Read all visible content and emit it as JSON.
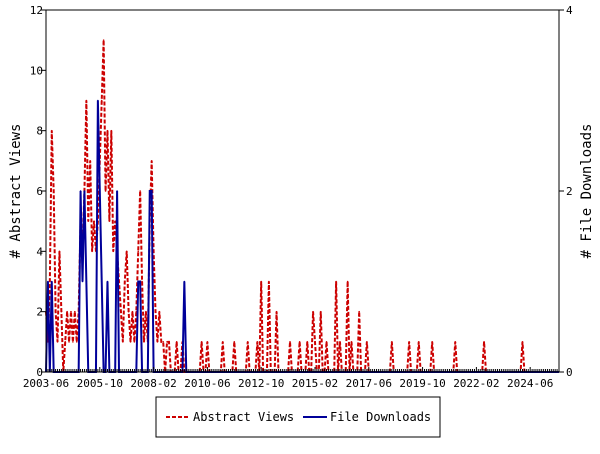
{
  "chart_data": {
    "type": "line",
    "title": "",
    "xlabel": "",
    "ylabel": "# Abstract Views",
    "y2label": "# File Downloads",
    "x_start": "2003-06",
    "x_end": "2025-09",
    "x_ticks": [
      "2003-06",
      "2005-10",
      "2008-02",
      "2010-06",
      "2012-10",
      "2015-02",
      "2017-06",
      "2019-10",
      "2022-02",
      "2024-06"
    ],
    "ylim": [
      0,
      12
    ],
    "y_ticks": [
      "0",
      "2",
      "4",
      "6",
      "8",
      "10",
      "12"
    ],
    "y2lim": [
      0,
      4
    ],
    "y2_ticks": [
      "0",
      "2",
      "4"
    ],
    "grid": false,
    "legend_position": "bottom",
    "series": [
      {
        "name": "Abstract Views",
        "axis": "left",
        "color": "#cc0000",
        "style": "dashed",
        "points": [
          [
            "2003-06",
            2
          ],
          [
            "2003-07",
            1
          ],
          [
            "2003-08",
            3
          ],
          [
            "2003-09",
            8
          ],
          [
            "2003-10",
            6
          ],
          [
            "2003-11",
            2
          ],
          [
            "2003-12",
            1
          ],
          [
            "2004-01",
            4
          ],
          [
            "2004-02",
            2
          ],
          [
            "2004-03",
            0
          ],
          [
            "2004-04",
            1
          ],
          [
            "2004-05",
            2
          ],
          [
            "2004-06",
            1
          ],
          [
            "2004-07",
            2
          ],
          [
            "2004-08",
            1
          ],
          [
            "2004-09",
            2
          ],
          [
            "2004-10",
            1
          ],
          [
            "2004-11",
            2
          ],
          [
            "2004-12",
            5
          ],
          [
            "2005-01",
            4
          ],
          [
            "2005-02",
            6
          ],
          [
            "2005-03",
            9
          ],
          [
            "2005-04",
            5
          ],
          [
            "2005-05",
            7
          ],
          [
            "2005-06",
            4
          ],
          [
            "2005-07",
            5
          ],
          [
            "2005-08",
            4
          ],
          [
            "2005-09",
            5
          ],
          [
            "2005-10",
            7
          ],
          [
            "2005-11",
            9
          ],
          [
            "2005-12",
            11
          ],
          [
            "2006-01",
            6
          ],
          [
            "2006-02",
            8
          ],
          [
            "2006-03",
            5
          ],
          [
            "2006-04",
            8
          ],
          [
            "2006-05",
            4
          ],
          [
            "2006-06",
            5
          ],
          [
            "2006-07",
            4
          ],
          [
            "2006-08",
            3
          ],
          [
            "2006-09",
            2
          ],
          [
            "2006-10",
            1
          ],
          [
            "2006-11",
            3
          ],
          [
            "2006-12",
            4
          ],
          [
            "2007-01",
            2
          ],
          [
            "2007-02",
            1
          ],
          [
            "2007-03",
            2
          ],
          [
            "2007-04",
            1
          ],
          [
            "2007-05",
            2
          ],
          [
            "2007-06",
            4
          ],
          [
            "2007-07",
            6
          ],
          [
            "2007-08",
            3
          ],
          [
            "2007-09",
            1
          ],
          [
            "2007-10",
            2
          ],
          [
            "2007-11",
            1
          ],
          [
            "2007-12",
            5
          ],
          [
            "2008-01",
            7
          ],
          [
            "2008-02",
            4
          ],
          [
            "2008-03",
            2
          ],
          [
            "2008-04",
            1
          ],
          [
            "2008-05",
            2
          ],
          [
            "2008-06",
            1
          ],
          [
            "2008-07",
            1
          ],
          [
            "2008-08",
            0
          ],
          [
            "2008-09",
            1
          ],
          [
            "2008-10",
            1
          ],
          [
            "2008-11",
            0
          ],
          [
            "2009-02",
            1
          ],
          [
            "2009-05",
            1
          ],
          [
            "2010-03",
            1
          ],
          [
            "2010-06",
            1
          ],
          [
            "2011-02",
            1
          ],
          [
            "2011-08",
            1
          ],
          [
            "2012-03",
            1
          ],
          [
            "2012-08",
            1
          ],
          [
            "2012-10",
            3
          ],
          [
            "2013-02",
            3
          ],
          [
            "2013-06",
            2
          ],
          [
            "2014-01",
            1
          ],
          [
            "2014-06",
            1
          ],
          [
            "2014-10",
            1
          ],
          [
            "2015-01",
            2
          ],
          [
            "2015-02",
            1
          ],
          [
            "2015-05",
            2
          ],
          [
            "2015-08",
            1
          ],
          [
            "2016-01",
            3
          ],
          [
            "2016-03",
            1
          ],
          [
            "2016-07",
            3
          ],
          [
            "2016-09",
            1
          ],
          [
            "2017-01",
            2
          ],
          [
            "2017-05",
            1
          ],
          [
            "2018-06",
            1
          ],
          [
            "2019-03",
            1
          ],
          [
            "2019-08",
            1
          ],
          [
            "2020-03",
            1
          ],
          [
            "2021-03",
            1
          ],
          [
            "2022-06",
            1
          ],
          [
            "2024-02",
            1
          ]
        ]
      },
      {
        "name": "File Downloads",
        "axis": "right",
        "color": "#000099",
        "style": "solid",
        "points": [
          [
            "2003-07",
            1
          ],
          [
            "2003-09",
            1
          ],
          [
            "2004-01",
            0
          ],
          [
            "2004-12",
            2
          ],
          [
            "2005-01",
            1
          ],
          [
            "2005-02",
            2
          ],
          [
            "2005-03",
            1
          ],
          [
            "2005-05",
            0
          ],
          [
            "2005-09",
            3
          ],
          [
            "2005-10",
            2
          ],
          [
            "2005-11",
            1
          ],
          [
            "2006-02",
            1
          ],
          [
            "2006-03",
            0
          ],
          [
            "2006-06",
            0
          ],
          [
            "2006-07",
            2
          ],
          [
            "2006-08",
            0
          ],
          [
            "2007-06",
            1
          ],
          [
            "2007-07",
            1
          ],
          [
            "2007-09",
            0
          ],
          [
            "2007-11",
            0
          ],
          [
            "2007-12",
            2
          ],
          [
            "2008-01",
            2
          ],
          [
            "2008-02",
            0
          ],
          [
            "2009-06",
            1
          ],
          [
            "2009-07",
            0
          ]
        ]
      }
    ]
  }
}
